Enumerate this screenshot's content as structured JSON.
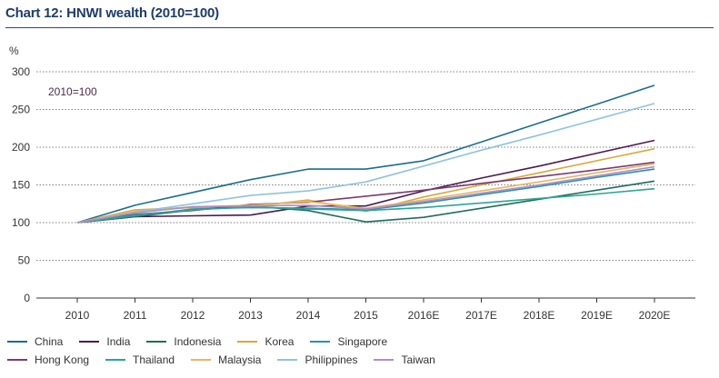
{
  "title": "Chart 12: HNWI wealth (2010=100)",
  "chart_data": {
    "type": "line",
    "ylabel": "%",
    "annotation": "2010=100",
    "ylim": [
      0,
      300
    ],
    "yticks": [
      0,
      50,
      100,
      150,
      200,
      250,
      300
    ],
    "categories": [
      "2010",
      "2011",
      "2012",
      "2013",
      "2014",
      "2015",
      "2016E",
      "2017E",
      "2018E",
      "2019E",
      "2020E"
    ],
    "grid": "horizontal dotted",
    "legend_position": "bottom",
    "series": [
      {
        "name": "China",
        "color": "#1a6e8a",
        "values": [
          100,
          123,
          140,
          157,
          171,
          171,
          182,
          207,
          232,
          257,
          282
        ]
      },
      {
        "name": "India",
        "color": "#4b1a4e",
        "values": [
          100,
          108,
          109,
          110,
          122,
          122,
          142,
          159,
          175,
          192,
          209
        ]
      },
      {
        "name": "Indonesia",
        "color": "#1f6e5a",
        "values": [
          100,
          108,
          117,
          122,
          116,
          101,
          107,
          119,
          131,
          143,
          155
        ]
      },
      {
        "name": "Korea",
        "color": "#d9a83a",
        "values": [
          100,
          117,
          120,
          121,
          130,
          115,
          134,
          150,
          166,
          182,
          198
        ]
      },
      {
        "name": "Singapore",
        "color": "#2b8fb3",
        "values": [
          100,
          109,
          118,
          120,
          119,
          117,
          126,
          137,
          148,
          160,
          171
        ]
      },
      {
        "name": "Hong Kong",
        "color": "#7b3a70",
        "values": [
          100,
          111,
          116,
          124,
          127,
          135,
          143,
          152,
          161,
          170,
          180
        ]
      },
      {
        "name": "Thailand",
        "color": "#2aa596",
        "values": [
          100,
          110,
          117,
          121,
          118,
          116,
          120,
          126,
          132,
          138,
          145
        ]
      },
      {
        "name": "Malaysia",
        "color": "#e0b864",
        "values": [
          100,
          115,
          121,
          123,
          128,
          119,
          130,
          142,
          154,
          166,
          178
        ]
      },
      {
        "name": "Philippines",
        "color": "#8fc3dc",
        "values": [
          100,
          114,
          125,
          136,
          142,
          154,
          175,
          196,
          216,
          237,
          258
        ]
      },
      {
        "name": "Taiwan",
        "color": "#b18cc2",
        "values": [
          100,
          113,
          121,
          122,
          123,
          118,
          128,
          139,
          150,
          162,
          174
        ]
      }
    ]
  }
}
